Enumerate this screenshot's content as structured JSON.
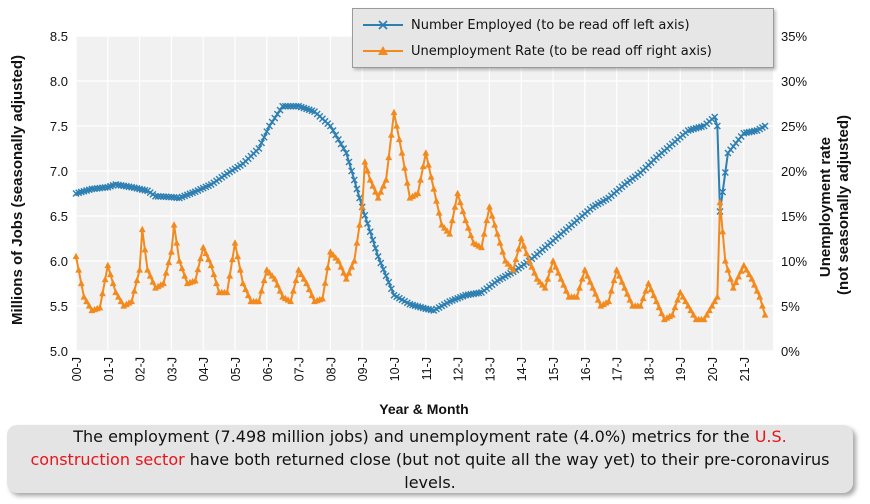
{
  "chart_data": {
    "type": "line",
    "xlabel": "Year & Month",
    "ylabel_left": "Millions of Jobs (seasonally adjusted)",
    "ylabel_right": [
      "Unemployment rate",
      "(not seasonally adjusted)"
    ],
    "ylim_left": [
      5.0,
      8.5
    ],
    "ylim_right": [
      0,
      35
    ],
    "yticks_left": [
      "5.0",
      "5.5",
      "6.0",
      "6.5",
      "7.0",
      "7.5",
      "8.0",
      "8.5"
    ],
    "yticks_right": [
      "0%",
      "5%",
      "10%",
      "15%",
      "20%",
      "25%",
      "30%",
      "35%"
    ],
    "xticks": [
      "00-J",
      "01-J",
      "02-J",
      "03-J",
      "04-J",
      "05-J",
      "06-J",
      "07-J",
      "08-J",
      "09-J",
      "10-J",
      "11-J",
      "12-J",
      "13-J",
      "14-J",
      "15-J",
      "16-J",
      "17-J",
      "18-J",
      "19-J",
      "20-J",
      "21-J"
    ],
    "grid": true,
    "legend_position": "top-right",
    "series": [
      {
        "name": "Number Employed (to be read off left axis)",
        "axis": "left",
        "color": "#2e7fb1",
        "marker": "x",
        "points": [
          [
            "2000-01",
            6.75
          ],
          [
            "2000-07",
            6.8
          ],
          [
            "2001-01",
            6.82
          ],
          [
            "2001-04",
            6.85
          ],
          [
            "2001-10",
            6.82
          ],
          [
            "2002-04",
            6.78
          ],
          [
            "2002-07",
            6.72
          ],
          [
            "2003-01",
            6.71
          ],
          [
            "2003-04",
            6.7
          ],
          [
            "2003-10",
            6.77
          ],
          [
            "2004-04",
            6.85
          ],
          [
            "2004-10",
            6.97
          ],
          [
            "2005-04",
            7.08
          ],
          [
            "2005-10",
            7.25
          ],
          [
            "2006-02",
            7.5
          ],
          [
            "2006-07",
            7.72
          ],
          [
            "2007-01",
            7.72
          ],
          [
            "2007-07",
            7.66
          ],
          [
            "2008-01",
            7.5
          ],
          [
            "2008-07",
            7.2
          ],
          [
            "2009-01",
            6.6
          ],
          [
            "2009-07",
            6.05
          ],
          [
            "2010-01",
            5.62
          ],
          [
            "2010-07",
            5.52
          ],
          [
            "2011-01",
            5.47
          ],
          [
            "2011-04",
            5.45
          ],
          [
            "2011-10",
            5.55
          ],
          [
            "2012-04",
            5.62
          ],
          [
            "2012-10",
            5.65
          ],
          [
            "2013-04",
            5.78
          ],
          [
            "2013-10",
            5.88
          ],
          [
            "2014-04",
            6.0
          ],
          [
            "2014-10",
            6.15
          ],
          [
            "2015-04",
            6.3
          ],
          [
            "2015-10",
            6.45
          ],
          [
            "2016-04",
            6.6
          ],
          [
            "2016-10",
            6.7
          ],
          [
            "2017-04",
            6.85
          ],
          [
            "2017-10",
            6.98
          ],
          [
            "2018-04",
            7.15
          ],
          [
            "2018-10",
            7.3
          ],
          [
            "2019-04",
            7.45
          ],
          [
            "2019-10",
            7.5
          ],
          [
            "2020-02",
            7.6
          ],
          [
            "2020-03",
            7.5
          ],
          [
            "2020-04",
            6.55
          ],
          [
            "2020-07",
            7.2
          ],
          [
            "2021-01",
            7.42
          ],
          [
            "2021-06",
            7.45
          ],
          [
            "2021-09",
            7.5
          ]
        ]
      },
      {
        "name": "Unemployment Rate (to be read off right axis)",
        "axis": "right",
        "color": "#f28a1e",
        "marker": "triangle",
        "points": [
          [
            "2000-01",
            10.5
          ],
          [
            "2000-04",
            6.0
          ],
          [
            "2000-07",
            4.5
          ],
          [
            "2000-10",
            4.8
          ],
          [
            "2001-01",
            9.5
          ],
          [
            "2001-04",
            6.5
          ],
          [
            "2001-07",
            5.0
          ],
          [
            "2001-10",
            5.5
          ],
          [
            "2002-01",
            9.0
          ],
          [
            "2002-02",
            13.5
          ],
          [
            "2002-04",
            9.0
          ],
          [
            "2002-07",
            7.0
          ],
          [
            "2002-10",
            7.5
          ],
          [
            "2003-01",
            11.0
          ],
          [
            "2003-02",
            14.0
          ],
          [
            "2003-04",
            10.0
          ],
          [
            "2003-07",
            7.5
          ],
          [
            "2003-10",
            7.8
          ],
          [
            "2004-01",
            11.5
          ],
          [
            "2004-04",
            9.5
          ],
          [
            "2004-07",
            6.5
          ],
          [
            "2004-10",
            6.5
          ],
          [
            "2005-01",
            12.0
          ],
          [
            "2005-04",
            7.5
          ],
          [
            "2005-07",
            5.5
          ],
          [
            "2005-10",
            5.5
          ],
          [
            "2006-01",
            9.0
          ],
          [
            "2006-04",
            8.0
          ],
          [
            "2006-07",
            6.0
          ],
          [
            "2006-10",
            5.5
          ],
          [
            "2007-01",
            9.0
          ],
          [
            "2007-04",
            7.5
          ],
          [
            "2007-07",
            5.5
          ],
          [
            "2007-10",
            5.8
          ],
          [
            "2008-01",
            11.0
          ],
          [
            "2008-04",
            10.0
          ],
          [
            "2008-07",
            8.0
          ],
          [
            "2008-10",
            10.0
          ],
          [
            "2009-01",
            16.0
          ],
          [
            "2009-02",
            21.0
          ],
          [
            "2009-04",
            19.0
          ],
          [
            "2009-07",
            17.0
          ],
          [
            "2009-10",
            19.0
          ],
          [
            "2010-01",
            26.5
          ],
          [
            "2010-04",
            22.0
          ],
          [
            "2010-07",
            17.0
          ],
          [
            "2010-10",
            17.5
          ],
          [
            "2011-01",
            22.0
          ],
          [
            "2011-04",
            18.0
          ],
          [
            "2011-07",
            14.0
          ],
          [
            "2011-10",
            13.0
          ],
          [
            "2012-01",
            17.5
          ],
          [
            "2012-04",
            14.5
          ],
          [
            "2012-07",
            12.0
          ],
          [
            "2012-10",
            11.5
          ],
          [
            "2013-01",
            16.0
          ],
          [
            "2013-04",
            13.0
          ],
          [
            "2013-07",
            10.0
          ],
          [
            "2013-10",
            9.0
          ],
          [
            "2014-01",
            12.5
          ],
          [
            "2014-04",
            10.0
          ],
          [
            "2014-07",
            8.0
          ],
          [
            "2014-10",
            7.0
          ],
          [
            "2015-01",
            10.0
          ],
          [
            "2015-04",
            8.0
          ],
          [
            "2015-07",
            6.0
          ],
          [
            "2015-10",
            6.0
          ],
          [
            "2016-01",
            9.0
          ],
          [
            "2016-04",
            7.0
          ],
          [
            "2016-07",
            5.0
          ],
          [
            "2016-10",
            5.5
          ],
          [
            "2017-01",
            9.0
          ],
          [
            "2017-04",
            7.0
          ],
          [
            "2017-07",
            5.0
          ],
          [
            "2017-10",
            5.0
          ],
          [
            "2018-01",
            7.5
          ],
          [
            "2018-04",
            5.5
          ],
          [
            "2018-07",
            3.5
          ],
          [
            "2018-10",
            4.0
          ],
          [
            "2019-01",
            6.5
          ],
          [
            "2019-04",
            5.0
          ],
          [
            "2019-07",
            3.5
          ],
          [
            "2019-10",
            3.5
          ],
          [
            "2020-01",
            5.0
          ],
          [
            "2020-03",
            6.0
          ],
          [
            "2020-04",
            16.5
          ],
          [
            "2020-06",
            10.0
          ],
          [
            "2020-09",
            7.0
          ],
          [
            "2021-01",
            9.5
          ],
          [
            "2021-04",
            8.0
          ],
          [
            "2021-07",
            6.0
          ],
          [
            "2021-09",
            4.0
          ]
        ]
      }
    ]
  },
  "caption": {
    "before": "The employment (7.498 million jobs) and unemployment rate (4.0%) metrics for the ",
    "highlight": "U.S. construction sector",
    "after": " have both returned close (but not quite all the way yet) to their pre-coronavirus levels."
  },
  "colors": {
    "plot_bg": "#f1f1f1",
    "grid": "#ffffff",
    "highlight": "#e8141b"
  }
}
